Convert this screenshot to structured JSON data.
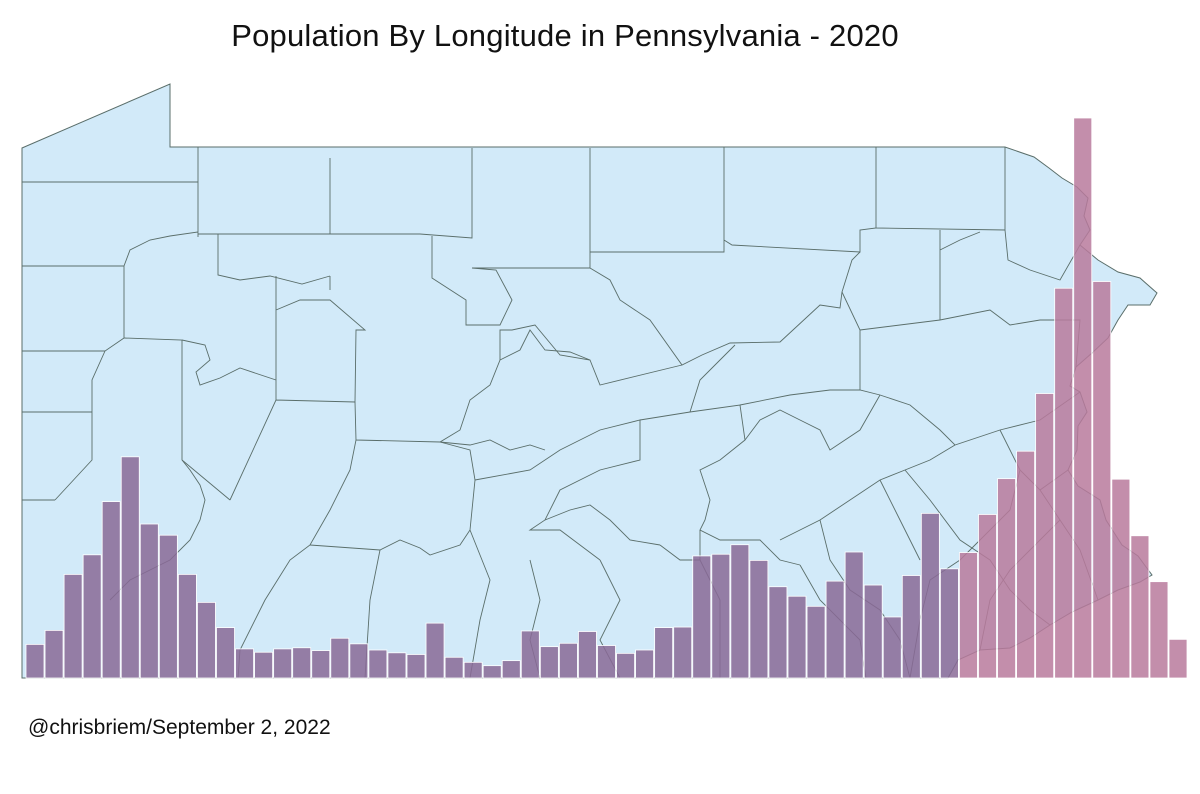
{
  "title": "Population By Longitude in Pennsylvania - 2020",
  "credit": "@chrisbriem/September 2, 2022",
  "colors": {
    "map_fill": "#d2eaf9",
    "map_stroke": "#5a6e6a",
    "bar_fill": "#8a6a96",
    "bar_fill_east": "#b87a9c",
    "bar_stroke": "#ffffff"
  },
  "chart_data": {
    "type": "bar",
    "title": "Population By Longitude in Pennsylvania - 2020",
    "xlabel": "",
    "ylabel": "",
    "background": "map of Pennsylvania county boundaries",
    "grid": false,
    "legend": "none",
    "ylim": [
      0,
      100
    ],
    "values": [
      6,
      8.5,
      18.5,
      22,
      31.5,
      39.5,
      27.5,
      25.5,
      18.5,
      13.5,
      9,
      5.2,
      4.6,
      5.2,
      5.4,
      4.9,
      7.1,
      6.1,
      5,
      4.5,
      4.2,
      9.8,
      3.7,
      2.8,
      2.2,
      3.1,
      8.4,
      5.6,
      6.2,
      8.3,
      5.8,
      4.4,
      5,
      9,
      9.1,
      21.8,
      22.1,
      23.8,
      21,
      16.3,
      14.6,
      12.8,
      17.3,
      22.5,
      16.6,
      10.9,
      18.3,
      29.4,
      19.5,
      22.4,
      29.2,
      35.6,
      40.5,
      50.8,
      69.6,
      100,
      70.8,
      35.5,
      25.4,
      17.2,
      6.9
    ]
  }
}
